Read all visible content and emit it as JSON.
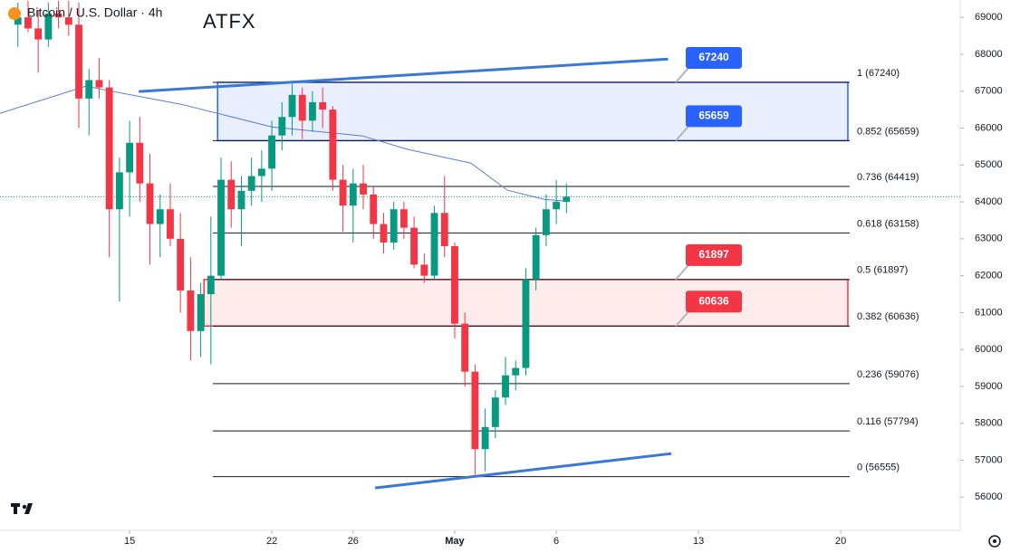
{
  "chart_data": {
    "type": "candlestick",
    "title": "Bitcoin / U.S. Dollar · 4h",
    "watermark": "ATFX",
    "up_color": "#089981",
    "down_color": "#f23645",
    "x": [
      9.5,
      10,
      10.5,
      11,
      11.5,
      12,
      12.5,
      13,
      13.5,
      14,
      14.5,
      15,
      15.5,
      16,
      16.5,
      17,
      17.5,
      18,
      18.5,
      19,
      19.5,
      20,
      20.5,
      21,
      21.5,
      22,
      22.5,
      23,
      23.5,
      24,
      24.5,
      25,
      25.5,
      26,
      26.5,
      27,
      27.5,
      28,
      28.5,
      29,
      29.5,
      30,
      30.5,
      31,
      31.5,
      32,
      32.5,
      33,
      33.5,
      34,
      34.5,
      35,
      35.5,
      36,
      36.5
    ],
    "open": [
      68800,
      69000,
      68700,
      68400,
      69100,
      69000,
      68800,
      66800,
      67300,
      67100,
      63800,
      64800,
      65600,
      64500,
      63400,
      63800,
      63000,
      61600,
      60500,
      61500,
      62000,
      64600,
      63800,
      64300,
      64700,
      64900,
      65800,
      66300,
      66900,
      66200,
      66700,
      66500,
      64600,
      63900,
      64500,
      64200,
      63400,
      62900,
      63800,
      63300,
      62300,
      62000,
      63700,
      62800,
      60700,
      59400,
      57300,
      57900,
      58700,
      59300,
      59500,
      61900,
      63100,
      63800,
      64000
    ],
    "high": [
      69400,
      69450,
      69200,
      69400,
      69450,
      69450,
      69400,
      67600,
      67900,
      67300,
      65200,
      66200,
      66300,
      65300,
      64200,
      64500,
      63700,
      62500,
      61800,
      63600,
      65200,
      65100,
      64700,
      65200,
      65400,
      66200,
      66700,
      67200,
      67100,
      67000,
      67100,
      66600,
      65000,
      64900,
      65000,
      64400,
      63700,
      64000,
      64000,
      63600,
      62600,
      63900,
      64700,
      62900,
      61000,
      59600,
      58400,
      58900,
      59800,
      59700,
      62200,
      63300,
      64200,
      64600,
      64500
    ],
    "low": [
      68200,
      68600,
      67500,
      68200,
      68700,
      68500,
      66000,
      65800,
      66800,
      62500,
      61300,
      63600,
      64000,
      62300,
      62500,
      62800,
      61000,
      59700,
      59800,
      59600,
      61900,
      63300,
      62800,
      63900,
      64000,
      64300,
      65400,
      65800,
      65700,
      65900,
      66000,
      64300,
      63200,
      62900,
      63800,
      63000,
      62600,
      62700,
      63000,
      62200,
      61800,
      61900,
      62500,
      60300,
      59000,
      56600,
      56700,
      57600,
      58500,
      58900,
      59300,
      61600,
      62800,
      63400,
      63700
    ],
    "close": [
      69000,
      68700,
      68400,
      69100,
      69000,
      68800,
      66800,
      67300,
      67100,
      63800,
      64800,
      65600,
      64500,
      63400,
      63800,
      63000,
      61600,
      60500,
      61500,
      62000,
      64600,
      63800,
      64300,
      64700,
      64900,
      65800,
      66300,
      66900,
      66200,
      66700,
      66500,
      64600,
      63900,
      64500,
      64200,
      63400,
      62900,
      63800,
      63300,
      62300,
      62000,
      63700,
      62800,
      60700,
      59400,
      57300,
      57900,
      58700,
      59300,
      59500,
      61900,
      63100,
      63800,
      64000,
      64140
    ],
    "moving_average": {
      "color": "#5b7bd5",
      "x": [
        8.62,
        12.86,
        13.98,
        17.54,
        22,
        26.46,
        28.7,
        31.8,
        33.6,
        35.4,
        36.5
      ],
      "values": [
        66400,
        67136,
        67013,
        66645,
        66032,
        65787,
        65420,
        65050,
        64315,
        64070,
        64020
      ]
    },
    "last_price": {
      "value": 64140,
      "color": "#089981"
    },
    "fib_levels": [
      {
        "label": "1 (67240)",
        "value": 67240
      },
      {
        "label": "0.852 (65659)",
        "value": 65659
      },
      {
        "label": "0.736 (64419)",
        "value": 64419
      },
      {
        "label": "0.618 (63158)",
        "value": 63158
      },
      {
        "label": "0.5 (61897)",
        "value": 61897
      },
      {
        "label": "0.382 (60636)",
        "value": 60636
      },
      {
        "label": "0.236 (59076)",
        "value": 59076
      },
      {
        "label": "0.116 (57794)",
        "value": 57794
      },
      {
        "label": "0 (56555)",
        "value": 56555
      }
    ],
    "zones": [
      {
        "top": 67240,
        "bottom": 65659,
        "x": [
          19.33,
          50.35
        ],
        "color": "#2962ff"
      },
      {
        "top": 61897,
        "bottom": 60636,
        "x": [
          18.66,
          50.35
        ],
        "color": "#f23645"
      }
    ],
    "trend_lines": [
      {
        "x": [
          15.45,
          41.5
        ],
        "values": [
          66990,
          67870
        ],
        "color": "#3a78d8"
      },
      {
        "x": [
          27.08,
          41.66
        ],
        "values": [
          56250,
          57180
        ],
        "color": "#3a78d8"
      }
    ],
    "xlim": [
      8.62,
      55.88
    ],
    "ylim": [
      55100,
      69470
    ],
    "xticks": [
      15,
      22,
      26,
      {
        "value": 31,
        "label": "May"
      },
      {
        "value": 36,
        "label": "6"
      },
      {
        "value": 43,
        "label": "13"
      },
      {
        "value": 50,
        "label": "20"
      }
    ],
    "yticks": [
      56000,
      57000,
      58000,
      59000,
      60000,
      61000,
      62000,
      63000,
      64000,
      65000,
      66000,
      67000,
      68000,
      69000
    ]
  }
}
